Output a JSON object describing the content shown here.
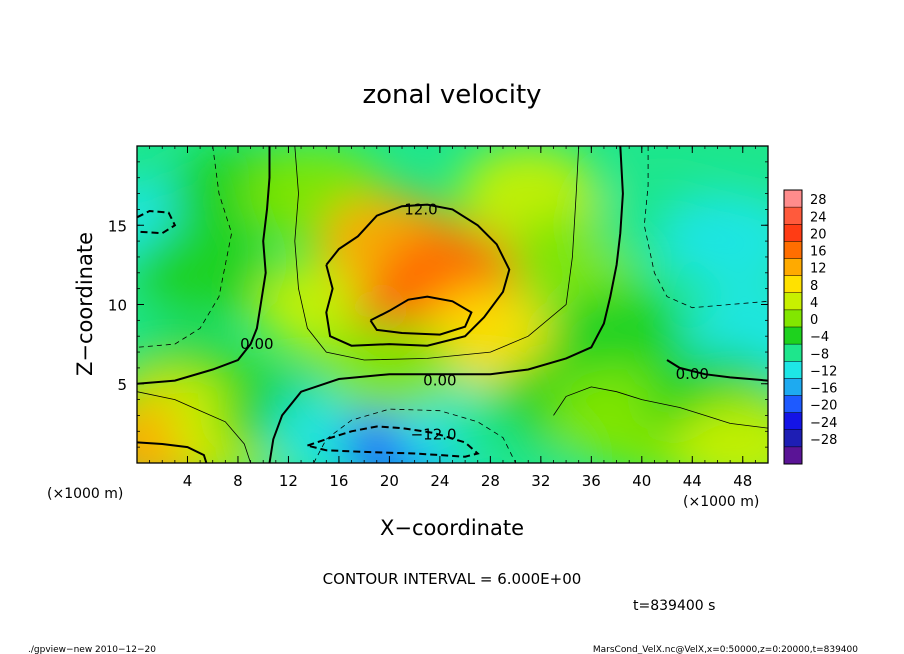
{
  "chart_data": {
    "type": "heatmap",
    "title": "zonal velocity",
    "xlabel": "X−coordinate",
    "ylabel": "Z−coordinate",
    "x_unit": "(×1000 m)",
    "y_unit": "(×1000 m)",
    "xlim": [
      0,
      50
    ],
    "ylim": [
      0,
      20
    ],
    "x_ticks": [
      "4",
      "8",
      "12",
      "16",
      "20",
      "24",
      "28",
      "32",
      "36",
      "40",
      "44",
      "48"
    ],
    "y_ticks": [
      "5",
      "10",
      "15"
    ],
    "contour_interval_text": "CONTOUR INTERVAL = 6.000E+00",
    "time_text": "t=839400 s",
    "contour_labels": [
      {
        "text": "12.0",
        "x": 22.5,
        "y": 16.0
      },
      {
        "text": "0.00",
        "x": 9.5,
        "y": 7.5
      },
      {
        "text": "0.00",
        "x": 24.0,
        "y": 5.2
      },
      {
        "text": "0.00",
        "x": 44.0,
        "y": 5.6
      },
      {
        "text": "−12.0",
        "x": 23.5,
        "y": 1.8
      }
    ],
    "colorbar": {
      "labels": [
        "28",
        "24",
        "20",
        "16",
        "12",
        "8",
        "4",
        "0",
        "−4",
        "−8",
        "−12",
        "−16",
        "−20",
        "−24",
        "−28"
      ],
      "colors": [
        "#ff8c8c",
        "#ff5a3c",
        "#ff3c14",
        "#ff6e00",
        "#ffaa00",
        "#ffe100",
        "#c8f000",
        "#82e600",
        "#1ed21e",
        "#1ee68c",
        "#1ee6e6",
        "#1eaaf0",
        "#1e5aff",
        "#1414e6",
        "#1e1eb4",
        "#5a1496"
      ]
    },
    "field_blobs": [
      {
        "x": 2,
        "y": 15,
        "v": -10
      },
      {
        "x": 1,
        "y": 10,
        "v": -7
      },
      {
        "x": 5,
        "y": 12,
        "v": -3
      },
      {
        "x": 8,
        "y": 17,
        "v": 0
      },
      {
        "x": 14,
        "y": 17,
        "v": 4
      },
      {
        "x": 15,
        "y": 10,
        "v": 5
      },
      {
        "x": 20,
        "y": 14,
        "v": 15
      },
      {
        "x": 23,
        "y": 9.3,
        "v": 23
      },
      {
        "x": 25,
        "y": 12,
        "v": 17
      },
      {
        "x": 28,
        "y": 8,
        "v": 10
      },
      {
        "x": 31,
        "y": 17,
        "v": 6
      },
      {
        "x": 35,
        "y": 13,
        "v": 2
      },
      {
        "x": 38,
        "y": 8,
        "v": -2
      },
      {
        "x": 42,
        "y": 15,
        "v": -6
      },
      {
        "x": 47,
        "y": 14,
        "v": -10
      },
      {
        "x": 49,
        "y": 8,
        "v": -8
      },
      {
        "x": 4,
        "y": 5,
        "v": 0
      },
      {
        "x": 3,
        "y": 3,
        "v": 8
      },
      {
        "x": 2,
        "y": 1,
        "v": 16
      },
      {
        "x": 8,
        "y": 2,
        "v": 6
      },
      {
        "x": 12,
        "y": 3,
        "v": 0
      },
      {
        "x": 16,
        "y": 2,
        "v": -8
      },
      {
        "x": 22,
        "y": 1,
        "v": -18
      },
      {
        "x": 26,
        "y": 2,
        "v": -10
      },
      {
        "x": 30,
        "y": 2,
        "v": -4
      },
      {
        "x": 34,
        "y": 4,
        "v": -3
      },
      {
        "x": 38,
        "y": 3,
        "v": 3
      },
      {
        "x": 42,
        "y": 2,
        "v": 1
      },
      {
        "x": 46,
        "y": 4,
        "v": -2
      },
      {
        "x": 48,
        "y": 1,
        "v": 8
      },
      {
        "x": 20,
        "y": 6,
        "v": 1
      }
    ]
  },
  "footer": {
    "left": "./gpview−new   2010−12−20",
    "right": "MarsCond_VelX.nc@VelX,x=0:50000,z=0:20000,t=839400"
  }
}
